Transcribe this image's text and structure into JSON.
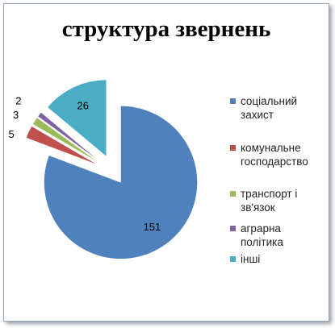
{
  "chart_data": {
    "type": "pie",
    "title": "структура звернень",
    "categories": [
      "соціальний захист",
      "комунальне господарство",
      "транспорт і зв'язок",
      "аграрна політика",
      "інші"
    ],
    "values": [
      151,
      5,
      3,
      2,
      26
    ],
    "colors": [
      "#4f81bd",
      "#c0504d",
      "#9bbb59",
      "#8064a2",
      "#4bacc6"
    ]
  }
}
